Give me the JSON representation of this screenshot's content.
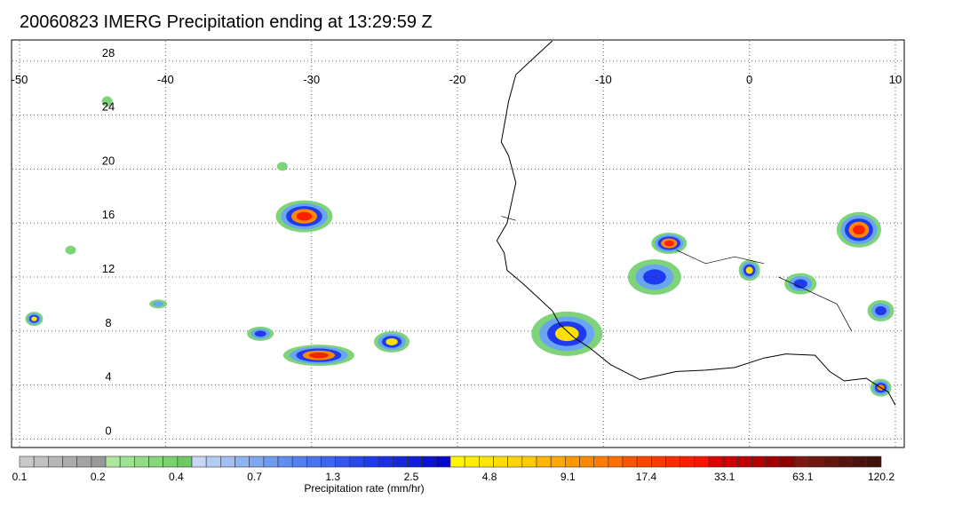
{
  "title": "20060823 IMERG Precipitation ending at 13:29:59 Z",
  "map": {
    "lon_range": [
      -50,
      10
    ],
    "lat_range": [
      -0.5,
      29.5
    ],
    "lon_ticks": [
      "-50",
      "-40",
      "-30",
      "-20",
      "-10",
      "0",
      "10"
    ],
    "lat_ticks": [
      "28",
      "24",
      "20",
      "16",
      "12",
      "8",
      "4",
      "0"
    ],
    "gridlines": true
  },
  "colorbar": {
    "label": "Precipitation rate (mm/hr)",
    "tick_labels": [
      "0.1",
      "0.2",
      "0.4",
      "0.7",
      "1.3",
      "2.5",
      "4.8",
      "9.1",
      "17.4",
      "33.1",
      "63.1",
      "120.2"
    ],
    "groups": [
      {
        "name": "gray",
        "colors": [
          "#c9c9c9",
          "#c0c0c0",
          "#b6b6b6",
          "#acacac",
          "#a3a3a3",
          "#9a9a9a"
        ]
      },
      {
        "name": "green",
        "colors": [
          "#aee8a0",
          "#a0e293",
          "#93dc86",
          "#86d67a",
          "#79d06e",
          "#6ec862"
        ]
      },
      {
        "name": "light-blue",
        "colors": [
          "#c6d7f7",
          "#b4cbf6",
          "#a2bff5",
          "#8fb4f4",
          "#7ea8f2",
          "#6b9cf0"
        ]
      },
      {
        "name": "blue",
        "colors": [
          "#5f8df0",
          "#5480ef",
          "#4a72ef",
          "#3f64ee",
          "#3456ed",
          "#2948ec"
        ]
      },
      {
        "name": "dark-blue",
        "colors": [
          "#1f3aec",
          "#1a30e6",
          "#1526e0",
          "#101cd9",
          "#0b12d2",
          "#0508cc"
        ]
      },
      {
        "name": "yellow",
        "colors": [
          "#fff700",
          "#fff000",
          "#ffe600",
          "#ffdd00",
          "#ffd400",
          "#ffcb00"
        ]
      },
      {
        "name": "orange",
        "colors": [
          "#ffb400",
          "#ffa600",
          "#ff9800",
          "#ff8a00",
          "#ff7c00",
          "#ff6e00"
        ]
      },
      {
        "name": "red",
        "colors": [
          "#ff5500",
          "#ff4700",
          "#ff3a00",
          "#ff2c00",
          "#ff1f00",
          "#ff1200"
        ]
      },
      {
        "name": "dark-red",
        "colors": [
          "#e00000",
          "#d00000",
          "#c00000",
          "#b00000",
          "#a00000",
          "#900000"
        ]
      },
      {
        "name": "brown",
        "colors": [
          "#7a1a10",
          "#6e1810",
          "#62160f",
          "#56140e",
          "#4a120d",
          "#3e100c"
        ]
      }
    ]
  }
}
